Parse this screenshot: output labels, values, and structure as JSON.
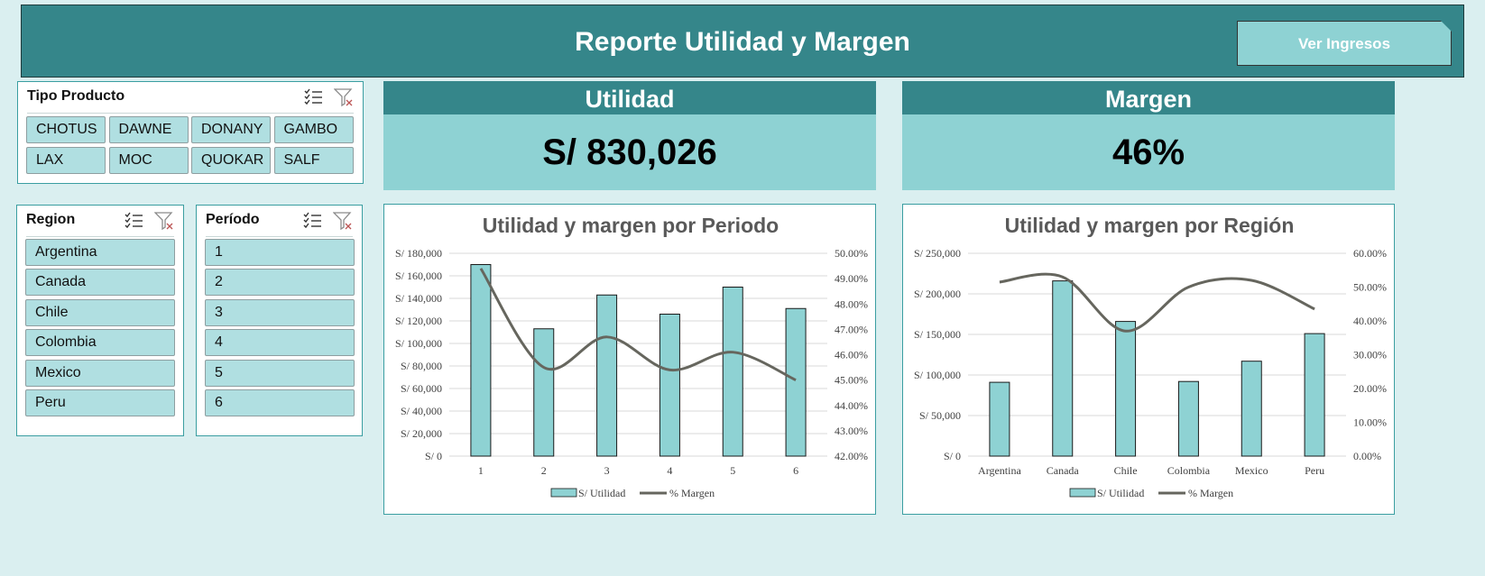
{
  "header": {
    "title": "Reporte Utilidad y Margen",
    "button_label": "Ver Ingresos"
  },
  "slicers": {
    "tipo_producto": {
      "title": "Tipo Producto",
      "items": [
        "CHOTUS",
        "DAWNE",
        "DONANY",
        "GAMBO",
        "LAX",
        "MOC",
        "QUOKAR",
        "SALF"
      ]
    },
    "region": {
      "title": "Region",
      "items": [
        "Argentina",
        "Canada",
        "Chile",
        "Colombia",
        "Mexico",
        "Peru"
      ]
    },
    "periodo": {
      "title": "Período",
      "items": [
        "1",
        "2",
        "3",
        "4",
        "5",
        "6"
      ]
    },
    "icons": [
      "multi-select-icon",
      "clear-filter-icon"
    ]
  },
  "kpis": {
    "utilidad": {
      "label": "Utilidad",
      "value": "S/ 830,026"
    },
    "margen": {
      "label": "Margen",
      "value": "46%"
    }
  },
  "colors": {
    "header_bg": "#35868a",
    "accent_light": "#8ed2d3",
    "slicer_item": "#b0dfe1",
    "page_bg": "#daeff0",
    "bar_fill": "#8ed2d3",
    "line": "#66665e"
  },
  "chart_data": [
    {
      "type": "bar",
      "title": "Utilidad y margen por Periodo",
      "categories": [
        "1",
        "2",
        "3",
        "4",
        "5",
        "6"
      ],
      "y_ticks": [
        "S/ 0",
        "S/ 20,000",
        "S/ 40,000",
        "S/ 60,000",
        "S/ 80,000",
        "S/ 100,000",
        "S/ 120,000",
        "S/ 140,000",
        "S/ 160,000",
        "S/ 180,000"
      ],
      "y2_ticks": [
        "42.00%",
        "43.00%",
        "44.00%",
        "45.00%",
        "46.00%",
        "47.00%",
        "48.00%",
        "49.00%",
        "50.00%"
      ],
      "ylim": [
        0,
        180000
      ],
      "y2lim": [
        42,
        50
      ],
      "series": [
        {
          "name": "S/ Utilidad",
          "kind": "bar",
          "values": [
            170000,
            113000,
            143000,
            126000,
            150000,
            131000
          ]
        },
        {
          "name": "% Margen",
          "kind": "line",
          "axis": "secondary",
          "values": [
            49.4,
            45.5,
            46.7,
            45.4,
            46.1,
            45.0
          ]
        }
      ],
      "legend": "bottom",
      "grid": true
    },
    {
      "type": "bar",
      "title": "Utilidad y margen por Región",
      "categories": [
        "Argentina",
        "Canada",
        "Chile",
        "Colombia",
        "Mexico",
        "Peru"
      ],
      "y_ticks": [
        "S/ 0",
        "S/ 50,000",
        "S/ 100,000",
        "S/ 150,000",
        "S/ 200,000",
        "S/ 250,000"
      ],
      "y2_ticks": [
        "0.00%",
        "10.00%",
        "20.00%",
        "30.00%",
        "40.00%",
        "50.00%",
        "60.00%"
      ],
      "ylim": [
        0,
        250000
      ],
      "y2lim": [
        0,
        60
      ],
      "series": [
        {
          "name": "S/ Utilidad",
          "kind": "bar",
          "values": [
            91000,
            216000,
            166000,
            92000,
            117000,
            151000
          ]
        },
        {
          "name": "% Margen",
          "kind": "line",
          "axis": "secondary",
          "values": [
            51.5,
            53.0,
            37.0,
            50.0,
            52.0,
            43.5
          ]
        }
      ],
      "legend": "bottom",
      "grid": true
    }
  ]
}
